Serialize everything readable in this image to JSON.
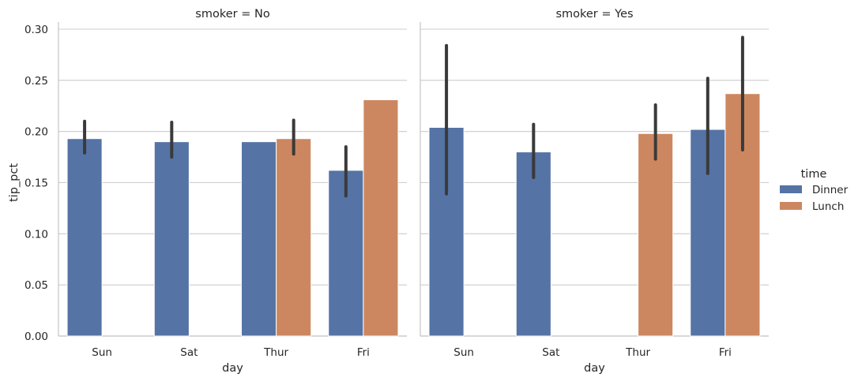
{
  "chart_data": [
    {
      "type": "bar",
      "title": "smoker = No",
      "xlabel": "day",
      "ylabel": "tip_pct",
      "ylim": [
        0,
        0.31
      ],
      "yticks": [
        "0.00",
        "0.05",
        "0.10",
        "0.15",
        "0.20",
        "0.25",
        "0.30"
      ],
      "grid": true,
      "categories": [
        "Sun",
        "Sat",
        "Thur",
        "Fri"
      ],
      "series": [
        {
          "name": "Dinner",
          "values": [
            0.193,
            0.19,
            0.19,
            0.162
          ],
          "err_low": [
            0.179,
            0.175,
            null,
            0.137
          ],
          "err_high": [
            0.21,
            0.209,
            null,
            0.185
          ]
        },
        {
          "name": "Lunch",
          "values": [
            null,
            null,
            0.193,
            0.231
          ],
          "err_low": [
            null,
            null,
            0.178,
            null
          ],
          "err_high": [
            null,
            null,
            0.211,
            null
          ]
        }
      ]
    },
    {
      "type": "bar",
      "title": "smoker = Yes",
      "xlabel": "day",
      "ylabel": "",
      "ylim": [
        0,
        0.31
      ],
      "grid": true,
      "categories": [
        "Sun",
        "Sat",
        "Thur",
        "Fri"
      ],
      "series": [
        {
          "name": "Dinner",
          "values": [
            0.204,
            0.18,
            null,
            0.202
          ],
          "err_low": [
            0.139,
            0.155,
            null,
            0.159
          ],
          "err_high": [
            0.284,
            0.207,
            null,
            0.252
          ]
        },
        {
          "name": "Lunch",
          "values": [
            null,
            null,
            0.198,
            0.237
          ],
          "err_low": [
            null,
            null,
            0.173,
            0.182
          ],
          "err_high": [
            null,
            null,
            0.226,
            0.292
          ]
        }
      ]
    }
  ],
  "legend": {
    "title": "time",
    "placement": "right",
    "items": [
      {
        "label": "Dinner",
        "color": "#5573a5"
      },
      {
        "label": "Lunch",
        "color": "#cc8760"
      }
    ]
  },
  "colors": {
    "Dinner": "#5573a5",
    "Lunch": "#cc8760",
    "errorbar": "#3a3a3a",
    "grid": "#cccccc"
  }
}
